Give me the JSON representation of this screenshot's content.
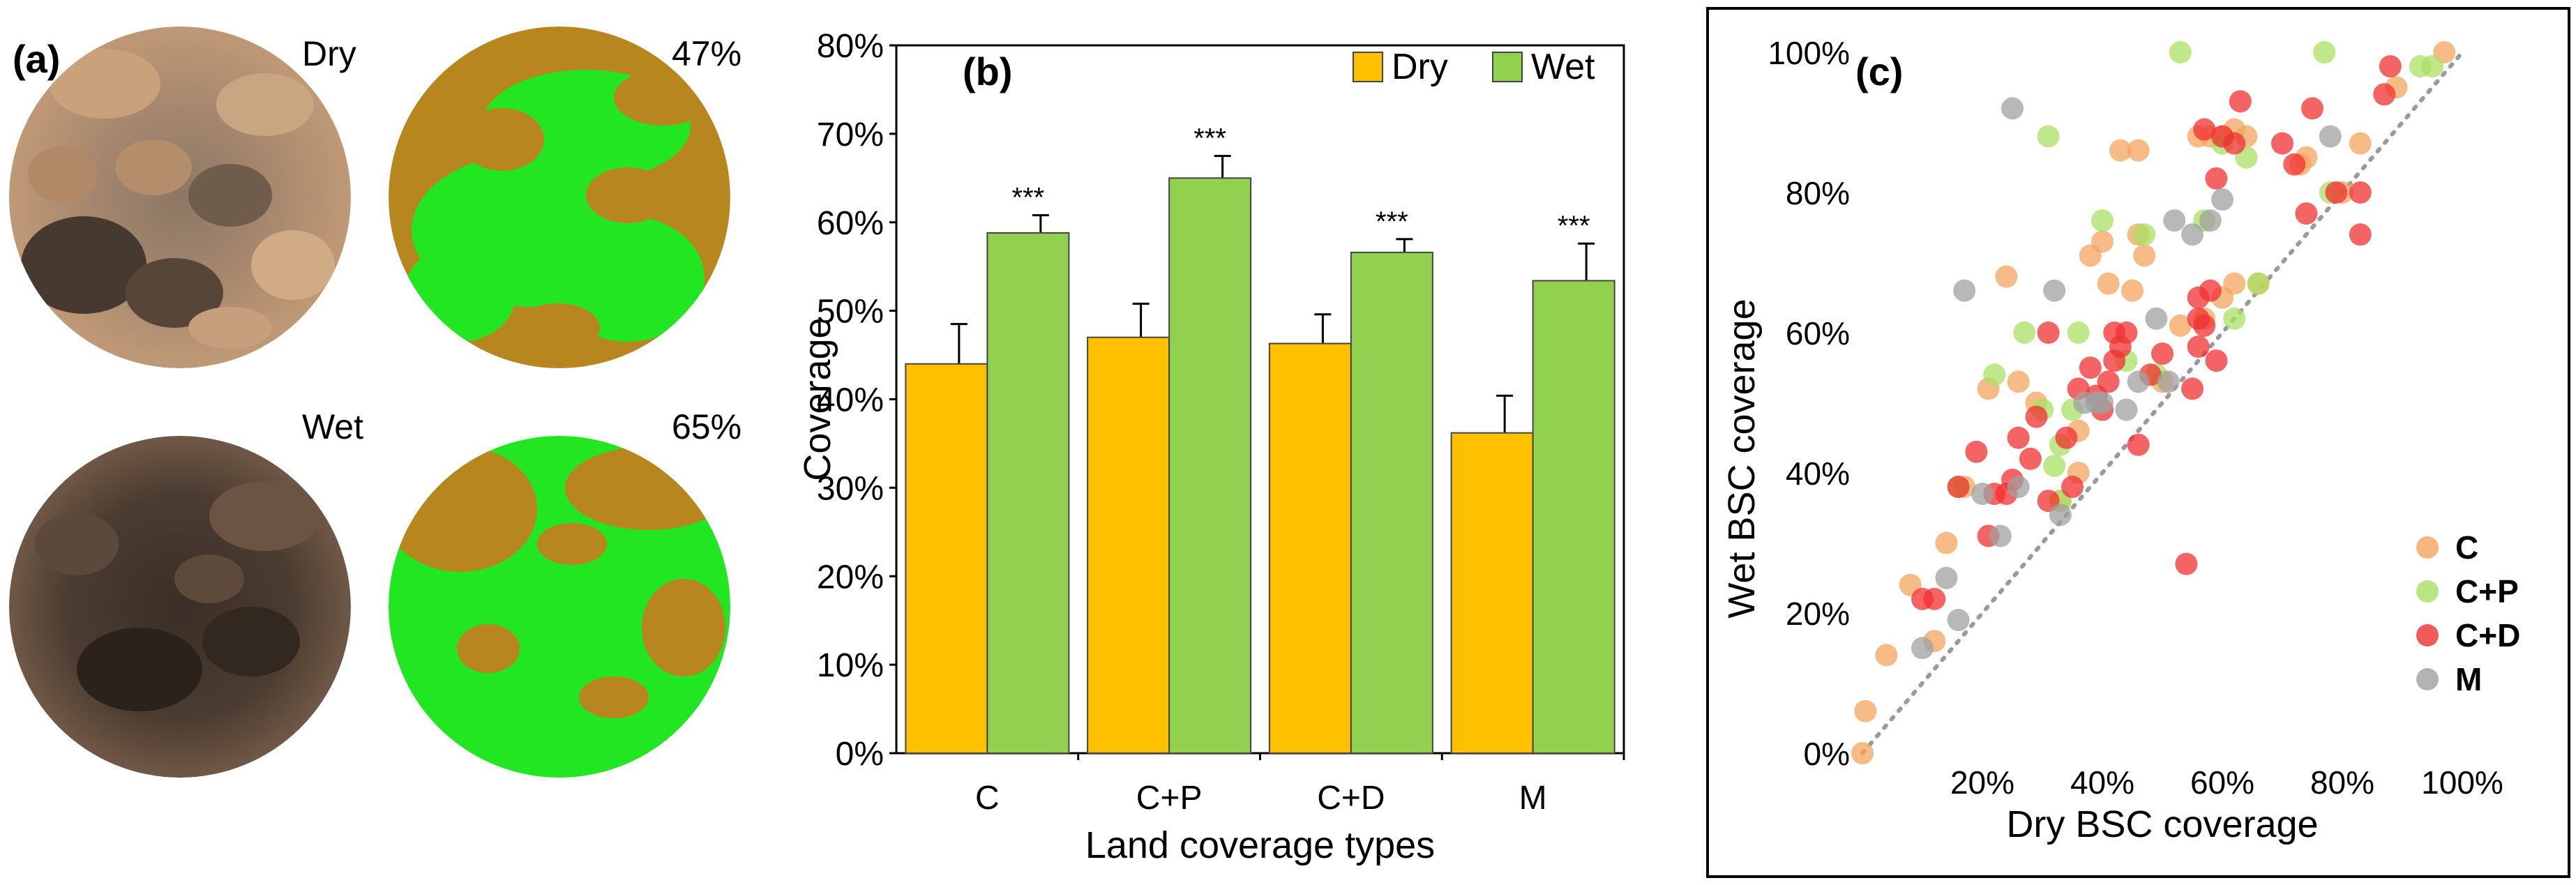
{
  "panels": {
    "a": {
      "label": "(a)",
      "photos": [
        {
          "caption": "Dry"
        },
        {
          "caption": "47%"
        },
        {
          "caption": "Wet"
        },
        {
          "caption": "65%"
        }
      ]
    },
    "b": {
      "label": "(b)"
    },
    "c": {
      "label": "(c)"
    }
  },
  "colors": {
    "dry": "#FFC000",
    "wet": "#92D050",
    "C": "#F4A460",
    "C+P": "#A8E063",
    "C+D": "#F03030",
    "M": "#A0A0A0",
    "soil_dry": "#b58c6a",
    "soil_wet": "#4a3b30",
    "seg_brown": "#b8861e",
    "seg_green": "#22e622"
  },
  "chart_data": [
    {
      "type": "bar",
      "title": "",
      "xlabel": "Land coverage types",
      "ylabel": "Coverage",
      "categories": [
        "C",
        "C+P",
        "C+D",
        "M"
      ],
      "ylim": [
        0,
        80
      ],
      "yticks": [
        "0%",
        "10%",
        "20%",
        "30%",
        "40%",
        "50%",
        "60%",
        "70%",
        "80%"
      ],
      "legend_position": "top-right",
      "series": [
        {
          "name": "Dry",
          "values": [
            44,
            47,
            46.3,
            36.2
          ],
          "errors": [
            4.5,
            3.8,
            3.3,
            4.2
          ]
        },
        {
          "name": "Wet",
          "values": [
            58.8,
            65,
            56.6,
            53.4
          ],
          "errors": [
            2.0,
            2.5,
            1.5,
            4.2
          ]
        }
      ],
      "significance": [
        "***",
        "***",
        "***",
        "***"
      ]
    },
    {
      "type": "scatter",
      "title": "",
      "xlabel": "Dry BSC coverage",
      "ylabel": "Wet BSC coverage",
      "xlim": [
        0,
        100
      ],
      "ylim": [
        0,
        100
      ],
      "xticks": [
        "20%",
        "40%",
        "60%",
        "80%",
        "100%"
      ],
      "yticks": [
        "0%",
        "20%",
        "40%",
        "60%",
        "80%",
        "100%"
      ],
      "reference_line": "1:1",
      "legend_position": "bottom-right",
      "series": [
        {
          "name": "C",
          "points": [
            [
              0,
              0
            ],
            [
              0.5,
              6
            ],
            [
              4,
              14
            ],
            [
              8,
              24
            ],
            [
              12,
              16
            ],
            [
              14,
              30
            ],
            [
              17,
              38
            ],
            [
              21,
              52
            ],
            [
              24,
              68
            ],
            [
              26,
              53
            ],
            [
              29,
              50
            ],
            [
              33,
              36
            ],
            [
              36,
              40
            ],
            [
              36,
              46
            ],
            [
              38,
              71
            ],
            [
              40,
              73
            ],
            [
              41,
              67
            ],
            [
              43,
              86
            ],
            [
              45,
              66
            ],
            [
              46,
              86
            ],
            [
              47,
              71
            ],
            [
              50,
              53
            ],
            [
              53,
              61
            ],
            [
              56,
              88
            ],
            [
              58,
              88
            ],
            [
              60,
              88
            ],
            [
              62,
              89
            ],
            [
              64,
              88
            ],
            [
              66,
              67
            ],
            [
              73,
              84
            ],
            [
              74,
              85
            ],
            [
              80,
              80
            ],
            [
              83,
              87
            ],
            [
              89,
              95
            ],
            [
              97,
              100
            ],
            [
              46,
              74
            ],
            [
              57,
              62
            ],
            [
              60,
              65
            ],
            [
              62,
              67
            ]
          ]
        },
        {
          "name": "C+P",
          "points": [
            [
              16,
              38
            ],
            [
              22,
              54
            ],
            [
              27,
              60
            ],
            [
              30,
              49
            ],
            [
              31,
              88
            ],
            [
              33,
              44
            ],
            [
              33,
              36
            ],
            [
              40,
              76
            ],
            [
              44,
              56
            ],
            [
              47,
              74
            ],
            [
              49,
              54
            ],
            [
              53,
              100
            ],
            [
              57,
              76
            ],
            [
              60,
              87
            ],
            [
              62,
              62
            ],
            [
              64,
              85
            ],
            [
              66,
              67
            ],
            [
              77,
              100
            ],
            [
              78,
              80
            ],
            [
              93,
              98
            ],
            [
              95,
              98
            ],
            [
              32,
              41
            ],
            [
              36,
              60
            ],
            [
              35,
              49
            ]
          ]
        },
        {
          "name": "C+D",
          "points": [
            [
              10,
              22
            ],
            [
              12,
              22
            ],
            [
              16,
              38
            ],
            [
              19,
              43
            ],
            [
              21,
              31
            ],
            [
              22,
              37
            ],
            [
              24,
              37
            ],
            [
              25,
              39
            ],
            [
              26,
              45
            ],
            [
              28,
              42
            ],
            [
              29,
              48
            ],
            [
              31,
              36
            ],
            [
              31,
              60
            ],
            [
              34,
              45
            ],
            [
              35,
              38
            ],
            [
              36,
              52
            ],
            [
              38,
              55
            ],
            [
              39,
              51
            ],
            [
              40,
              49
            ],
            [
              41,
              53
            ],
            [
              42,
              56
            ],
            [
              42,
              60
            ],
            [
              43,
              58
            ],
            [
              44,
              60
            ],
            [
              46,
              44
            ],
            [
              48,
              54
            ],
            [
              50,
              57
            ],
            [
              54,
              27
            ],
            [
              55,
              52
            ],
            [
              56,
              58
            ],
            [
              56,
              62
            ],
            [
              57,
              89
            ],
            [
              58,
              66
            ],
            [
              59,
              56
            ],
            [
              59,
              82
            ],
            [
              60,
              88
            ],
            [
              62,
              87
            ],
            [
              63,
              93
            ],
            [
              70,
              87
            ],
            [
              72,
              84
            ],
            [
              74,
              77
            ],
            [
              75,
              92
            ],
            [
              79,
              80
            ],
            [
              83,
              74
            ],
            [
              83,
              80
            ],
            [
              87,
              94
            ],
            [
              88,
              98
            ],
            [
              56,
              65
            ],
            [
              57,
              61
            ]
          ]
        },
        {
          "name": "M",
          "points": [
            [
              10,
              15
            ],
            [
              14,
              25
            ],
            [
              16,
              19
            ],
            [
              17,
              66
            ],
            [
              20,
              37
            ],
            [
              23,
              31
            ],
            [
              25,
              92
            ],
            [
              26,
              38
            ],
            [
              32,
              66
            ],
            [
              33,
              34
            ],
            [
              37,
              50
            ],
            [
              39,
              50
            ],
            [
              40,
              50
            ],
            [
              44,
              49
            ],
            [
              46,
              53
            ],
            [
              49,
              62
            ],
            [
              51,
              53
            ],
            [
              52,
              76
            ],
            [
              55,
              74
            ],
            [
              58,
              76
            ],
            [
              60,
              79
            ],
            [
              78,
              88
            ]
          ]
        }
      ]
    }
  ]
}
